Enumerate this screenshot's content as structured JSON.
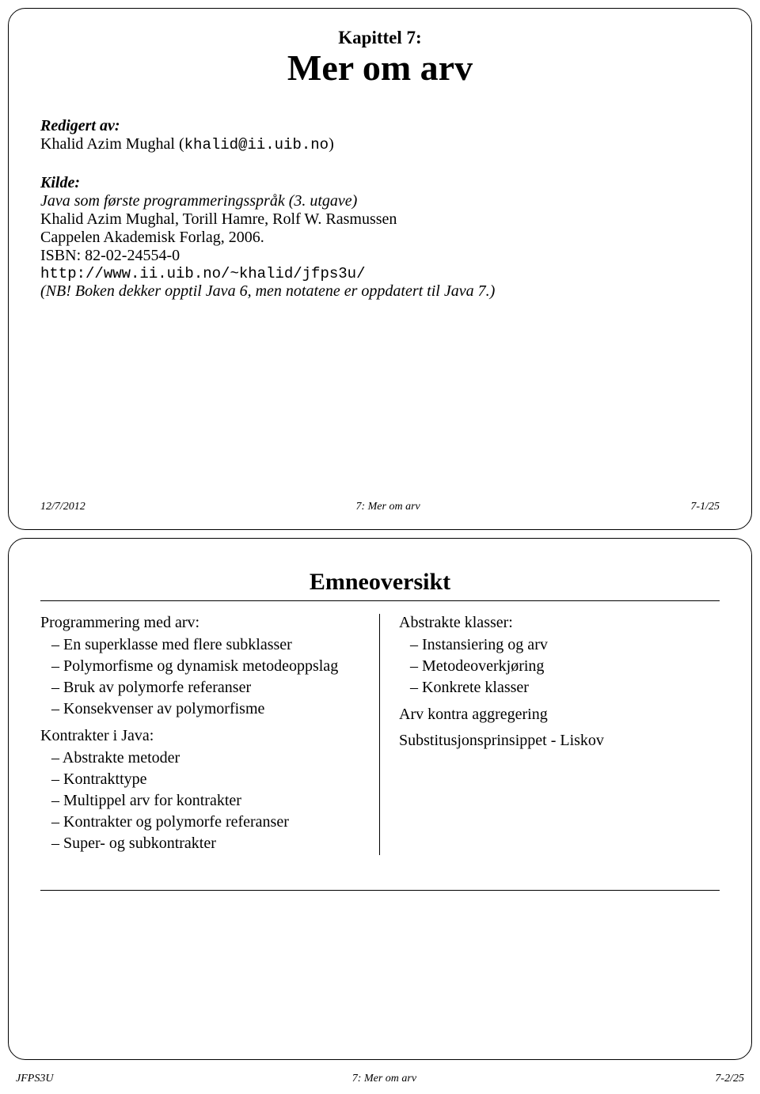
{
  "slide1": {
    "chapterLabel": "Kapittel 7:",
    "chapterTitle": "Mer om arv",
    "editedByLabel": "Redigert av:",
    "editorName": "Khalid Azim Mughal (",
    "editorEmail": "khalid@ii.uib.no",
    "editorNameClose": ")",
    "sourceLabel": "Kilde:",
    "sourceBook": "Java som første programmeringsspråk (3. utgave)",
    "authors": "Khalid Azim Mughal, Torill Hamre, Rolf W. Rasmussen",
    "publisher": "Cappelen Akademisk Forlag, 2006.",
    "isbn": "ISBN: 82-02-24554-0",
    "url": "http://www.ii.uib.no/~khalid/jfps3u/",
    "nb": "(NB! Boken dekker opptil Java 6, men notatene er oppdatert til Java 7.)",
    "footLeft": "12/7/2012",
    "footCenter": "7: Mer om arv",
    "footRight": "7-1/25"
  },
  "slide2": {
    "title": "Emneoversikt",
    "left": {
      "g1": {
        "head": "Programmering med arv:",
        "i1": "En superklasse med flere subklasser",
        "i2": "Polymorfisme og dynamisk metodeoppslag",
        "i3": "Bruk av polymorfe referanser",
        "i4": "Konsekvenser av polymorfisme"
      },
      "g2": {
        "head": "Kontrakter i Java:",
        "i1": "Abstrakte metoder",
        "i2": "Kontrakttype",
        "i3": "Multippel arv for kontrakter",
        "i4": "Kontrakter og polymorfe referanser",
        "i5": "Super- og subkontrakter"
      }
    },
    "right": {
      "g1": {
        "head": "Abstrakte klasser:",
        "i1": "Instansiering og arv",
        "i2": "Metodeoverkjøring",
        "i3": "Konkrete klasser"
      },
      "g2": "Arv kontra aggregering",
      "g3": "Substitusjonsprinsippet - Liskov"
    }
  },
  "pageFooter": {
    "left": "JFPS3U",
    "center": "7: Mer om arv",
    "right": "7-2/25"
  }
}
